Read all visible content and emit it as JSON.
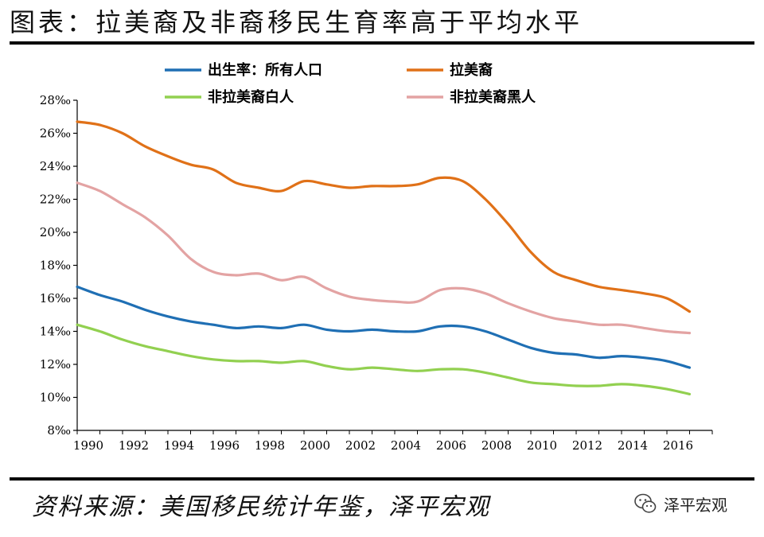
{
  "header": {
    "title": "图表：拉美裔及非裔移民生育率高于平均水平"
  },
  "footer": {
    "source": "资料来源：美国移民统计年鉴，泽平宏观",
    "brand": "泽平宏观",
    "brand_icon": "wechat-icon"
  },
  "chart_data": {
    "type": "line",
    "title": "图表：拉美裔及非裔移民生育率高于平均水平",
    "xlabel": "",
    "ylabel": "",
    "x": [
      1990,
      1991,
      1992,
      1993,
      1994,
      1995,
      1996,
      1997,
      1998,
      1999,
      2000,
      2001,
      2002,
      2003,
      2004,
      2005,
      2006,
      2007,
      2008,
      2009,
      2010,
      2011,
      2012,
      2013,
      2014,
      2015,
      2016,
      2017
    ],
    "xticks": [
      "1990",
      "1992",
      "1994",
      "1996",
      "1998",
      "2000",
      "2002",
      "2004",
      "2006",
      "2008",
      "2010",
      "2012",
      "2014",
      "2016"
    ],
    "yticks": [
      "8‰",
      "10‰",
      "12‰",
      "14‰",
      "16‰",
      "18‰",
      "20‰",
      "22‰",
      "24‰",
      "26‰",
      "28‰"
    ],
    "ylim": [
      8,
      28
    ],
    "xlim": [
      1990,
      2018
    ],
    "grid": false,
    "legend_position": "top",
    "series": [
      {
        "name": "出生率：所有人口",
        "color": "#1f6fb4",
        "values": [
          16.7,
          16.2,
          15.8,
          15.3,
          14.9,
          14.6,
          14.4,
          14.2,
          14.3,
          14.2,
          14.4,
          14.1,
          14.0,
          14.1,
          14.0,
          14.0,
          14.3,
          14.3,
          14.0,
          13.5,
          13.0,
          12.7,
          12.6,
          12.4,
          12.5,
          12.4,
          12.2,
          11.8
        ]
      },
      {
        "name": "拉美裔",
        "color": "#e07118",
        "values": [
          26.7,
          26.5,
          26.0,
          25.2,
          24.6,
          24.1,
          23.8,
          23.0,
          22.7,
          22.5,
          23.1,
          22.9,
          22.7,
          22.8,
          22.8,
          22.9,
          23.3,
          23.1,
          22.0,
          20.5,
          18.8,
          17.6,
          17.1,
          16.7,
          16.5,
          16.3,
          16.0,
          15.2
        ]
      },
      {
        "name": "非拉美裔白人",
        "color": "#92d050",
        "values": [
          14.4,
          14.0,
          13.5,
          13.1,
          12.8,
          12.5,
          12.3,
          12.2,
          12.2,
          12.1,
          12.2,
          11.9,
          11.7,
          11.8,
          11.7,
          11.6,
          11.7,
          11.7,
          11.5,
          11.2,
          10.9,
          10.8,
          10.7,
          10.7,
          10.8,
          10.7,
          10.5,
          10.2
        ]
      },
      {
        "name": "非拉美裔黑人",
        "color": "#e3a3a3",
        "values": [
          23.0,
          22.5,
          21.7,
          20.9,
          19.8,
          18.4,
          17.6,
          17.4,
          17.5,
          17.1,
          17.3,
          16.6,
          16.1,
          15.9,
          15.8,
          15.8,
          16.5,
          16.6,
          16.3,
          15.7,
          15.2,
          14.8,
          14.6,
          14.4,
          14.4,
          14.2,
          14.0,
          13.9
        ]
      }
    ]
  }
}
